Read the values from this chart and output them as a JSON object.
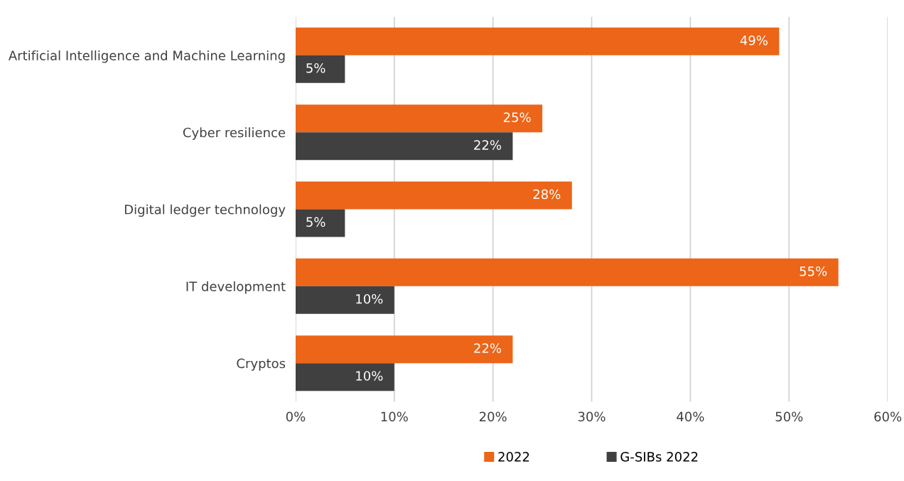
{
  "chart_data": {
    "type": "bar",
    "orientation": "horizontal",
    "categories": [
      "Artificial Intelligence and Machine Learning",
      "Cyber resilience",
      "Digital ledger technology",
      "IT development",
      "Cryptos"
    ],
    "series": [
      {
        "name": "2022",
        "color": "#ec6519",
        "values": [
          49,
          25,
          28,
          55,
          22
        ],
        "value_labels": [
          "49%",
          "25%",
          "28%",
          "55%",
          "22%"
        ]
      },
      {
        "name": "G-SIBs 2022",
        "color": "#404040",
        "values": [
          5,
          22,
          5,
          10,
          10
        ],
        "value_labels": [
          "5%",
          "22%",
          "5%",
          "10%",
          "10%"
        ]
      }
    ],
    "xlim": [
      0,
      60
    ],
    "xticks": [
      {
        "value": 0,
        "label": "0%"
      },
      {
        "value": 10,
        "label": "10%"
      },
      {
        "value": 20,
        "label": "20%"
      },
      {
        "value": 30,
        "label": "30%"
      },
      {
        "value": 40,
        "label": "40%"
      },
      {
        "value": 50,
        "label": "50%"
      },
      {
        "value": 60,
        "label": "60%"
      }
    ],
    "grid": "x",
    "legend": "bottom"
  }
}
